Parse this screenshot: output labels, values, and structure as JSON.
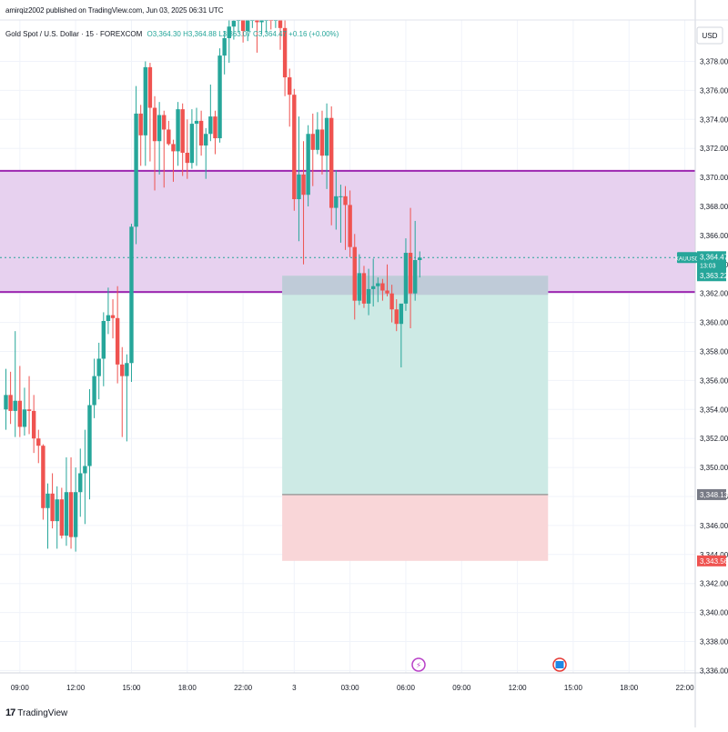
{
  "header": {
    "publisher": "amirqiz2002 published on TradingView.com, Jun 03, 2025 06:31 UTC",
    "symbol": "Gold Spot / U.S. Dollar · 15 · FOREXCOM",
    "ohlc": "O3,364.30 H3,364.88 L3,363.07 C3,364.47 +0.16 (+0.00%)"
  },
  "footer": {
    "brand": "TradingView"
  },
  "colors": {
    "up": "#26a69a",
    "down": "#ef5350",
    "zone_fill": "#e7d1ef",
    "zone_line": "#9c27b0",
    "target_fill": "#cdeae5",
    "stop_fill": "#f9d6d8",
    "entry_fill": "#bcc6d6"
  },
  "chart_data": {
    "type": "candlestick",
    "currency": "USD",
    "y_axis": {
      "ylim": [
        3335.5,
        3381.5
      ],
      "ticks": [
        "3,336.00",
        "3,338.00",
        "3,340.00",
        "3,342.00",
        "3,344.00",
        "3,346.00",
        "3,348.00",
        "3,350.00",
        "3,352.00",
        "3,354.00",
        "3,356.00",
        "3,358.00",
        "3,360.00",
        "3,362.00",
        "3,364.00",
        "3,366.00",
        "3,368.00",
        "3,370.00",
        "3,372.00",
        "3,374.00",
        "3,376.00",
        "3,378.00"
      ],
      "tick_values": [
        3336,
        3338,
        3340,
        3342,
        3344,
        3346,
        3348,
        3350,
        3352,
        3354,
        3356,
        3358,
        3360,
        3362,
        3364,
        3366,
        3368,
        3370,
        3372,
        3374,
        3376,
        3378
      ]
    },
    "x_axis": {
      "labels": [
        "09:00",
        "12:00",
        "15:00",
        "18:00",
        "22:00",
        "3",
        "03:00",
        "06:00",
        "09:00",
        "12:00",
        "15:00",
        "18:00",
        "22:00"
      ],
      "bar_index": [
        3,
        15,
        27,
        39,
        51,
        62,
        74,
        86,
        98,
        110,
        122,
        134,
        146
      ]
    },
    "price_labels": [
      {
        "text": "XAUUSD",
        "value": 3364.47,
        "kind": "symbol"
      },
      {
        "text": "3,364.47",
        "value": 3364.47,
        "kind": "last"
      },
      {
        "text": "13:03",
        "value": 3364.47,
        "kind": "countdown"
      },
      {
        "text": "3,363.22",
        "value": 3363.22,
        "kind": "entry"
      },
      {
        "text": "3,348.13",
        "value": 3348.13,
        "kind": "target"
      },
      {
        "text": "3,343.56",
        "value": 3343.56,
        "kind": "stop"
      }
    ],
    "zones": [
      {
        "name": "supply zone",
        "top": 3370.45,
        "bottom": 3362.1
      }
    ],
    "position": {
      "type": "short",
      "entry": 3363.22,
      "target": 3348.13,
      "stop_top": 3348.13,
      "stop_bottom": 3343.56,
      "start_bar": 60,
      "end_bar": 116
    },
    "last_price": 3364.47,
    "candles": [
      {
        "o": 3354.0,
        "h": 3356.8,
        "l": 3352.6,
        "c": 3355.0
      },
      {
        "o": 3355.0,
        "h": 3356.6,
        "l": 3353.0,
        "c": 3353.9
      },
      {
        "o": 3353.9,
        "h": 3359.4,
        "l": 3352.1,
        "c": 3354.6
      },
      {
        "o": 3354.6,
        "h": 3357.0,
        "l": 3352.1,
        "c": 3352.8
      },
      {
        "o": 3352.8,
        "h": 3355.5,
        "l": 3352.2,
        "c": 3354.0
      },
      {
        "o": 3354.0,
        "h": 3356.3,
        "l": 3352.3,
        "c": 3353.9
      },
      {
        "o": 3353.9,
        "h": 3355.0,
        "l": 3351.0,
        "c": 3352.0
      },
      {
        "o": 3352.0,
        "h": 3352.6,
        "l": 3350.3,
        "c": 3351.5
      },
      {
        "o": 3351.5,
        "h": 3351.6,
        "l": 3346.4,
        "c": 3347.2
      },
      {
        "o": 3347.2,
        "h": 3348.9,
        "l": 3344.4,
        "c": 3348.2
      },
      {
        "o": 3348.2,
        "h": 3349.6,
        "l": 3345.8,
        "c": 3346.3
      },
      {
        "o": 3346.3,
        "h": 3348.7,
        "l": 3344.4,
        "c": 3347.8
      },
      {
        "o": 3347.8,
        "h": 3348.6,
        "l": 3345.1,
        "c": 3345.3
      },
      {
        "o": 3345.3,
        "h": 3350.7,
        "l": 3344.6,
        "c": 3348.3
      },
      {
        "o": 3348.3,
        "h": 3350.7,
        "l": 3344.4,
        "c": 3345.2
      },
      {
        "o": 3345.2,
        "h": 3350.0,
        "l": 3344.2,
        "c": 3348.3
      },
      {
        "o": 3348.3,
        "h": 3351.3,
        "l": 3346.6,
        "c": 3349.6
      },
      {
        "o": 3349.6,
        "h": 3352.6,
        "l": 3346.1,
        "c": 3350.1
      },
      {
        "o": 3350.1,
        "h": 3355.4,
        "l": 3347.8,
        "c": 3354.3
      },
      {
        "o": 3354.3,
        "h": 3357.5,
        "l": 3353.4,
        "c": 3356.3
      },
      {
        "o": 3356.3,
        "h": 3358.6,
        "l": 3354.7,
        "c": 3357.5
      },
      {
        "o": 3357.5,
        "h": 3360.7,
        "l": 3355.6,
        "c": 3360.1
      },
      {
        "o": 3360.1,
        "h": 3362.4,
        "l": 3359.2,
        "c": 3360.5
      },
      {
        "o": 3360.5,
        "h": 3361.6,
        "l": 3358.9,
        "c": 3360.3
      },
      {
        "o": 3360.3,
        "h": 3362.5,
        "l": 3355.8,
        "c": 3357.1
      },
      {
        "o": 3357.1,
        "h": 3358.3,
        "l": 3352.1,
        "c": 3356.3
      },
      {
        "o": 3356.3,
        "h": 3357.8,
        "l": 3351.8,
        "c": 3357.2
      },
      {
        "o": 3357.2,
        "h": 3366.8,
        "l": 3355.9,
        "c": 3366.6
      },
      {
        "o": 3366.6,
        "h": 3376.3,
        "l": 3365.4,
        "c": 3374.4
      },
      {
        "o": 3374.4,
        "h": 3375.0,
        "l": 3370.8,
        "c": 3372.9
      },
      {
        "o": 3372.9,
        "h": 3378.0,
        "l": 3370.8,
        "c": 3377.6
      },
      {
        "o": 3377.6,
        "h": 3377.9,
        "l": 3371.1,
        "c": 3374.8
      },
      {
        "o": 3374.8,
        "h": 3375.6,
        "l": 3369.1,
        "c": 3372.5
      },
      {
        "o": 3372.5,
        "h": 3375.2,
        "l": 3370.2,
        "c": 3374.3
      },
      {
        "o": 3374.3,
        "h": 3374.6,
        "l": 3369.3,
        "c": 3373.3
      },
      {
        "o": 3373.3,
        "h": 3373.9,
        "l": 3372.2,
        "c": 3372.3
      },
      {
        "o": 3372.3,
        "h": 3372.6,
        "l": 3369.7,
        "c": 3371.8
      },
      {
        "o": 3371.8,
        "h": 3375.2,
        "l": 3370.8,
        "c": 3374.7
      },
      {
        "o": 3374.7,
        "h": 3375.1,
        "l": 3370.1,
        "c": 3371.7
      },
      {
        "o": 3371.7,
        "h": 3374.0,
        "l": 3369.9,
        "c": 3371.0
      },
      {
        "o": 3371.0,
        "h": 3374.7,
        "l": 3370.6,
        "c": 3373.7
      },
      {
        "o": 3373.7,
        "h": 3374.8,
        "l": 3370.8,
        "c": 3373.9
      },
      {
        "o": 3373.9,
        "h": 3374.6,
        "l": 3371.5,
        "c": 3372.2
      },
      {
        "o": 3372.2,
        "h": 3373.4,
        "l": 3369.9,
        "c": 3373.0
      },
      {
        "o": 3373.0,
        "h": 3376.4,
        "l": 3372.5,
        "c": 3374.2
      },
      {
        "o": 3374.2,
        "h": 3374.6,
        "l": 3371.6,
        "c": 3372.7
      },
      {
        "o": 3372.7,
        "h": 3378.9,
        "l": 3372.4,
        "c": 3378.4
      },
      {
        "o": 3378.4,
        "h": 3380.1,
        "l": 3377.1,
        "c": 3379.6
      },
      {
        "o": 3379.6,
        "h": 3381.5,
        "l": 3377.9,
        "c": 3380.4
      },
      {
        "o": 3380.4,
        "h": 3381.5,
        "l": 3379.5,
        "c": 3380.8
      },
      {
        "o": 3380.8,
        "h": 3381.5,
        "l": 3380.0,
        "c": 3381.3
      },
      {
        "o": 3381.3,
        "h": 3381.5,
        "l": 3379.3,
        "c": 3380.1
      },
      {
        "o": 3380.1,
        "h": 3381.5,
        "l": 3379.4,
        "c": 3381.0
      },
      {
        "o": 3381.0,
        "h": 3381.5,
        "l": 3380.3,
        "c": 3381.4
      },
      {
        "o": 3381.4,
        "h": 3381.5,
        "l": 3378.6,
        "c": 3380.7
      },
      {
        "o": 3380.7,
        "h": 3381.5,
        "l": 3379.9,
        "c": 3381.3
      },
      {
        "o": 3381.3,
        "h": 3381.5,
        "l": 3380.0,
        "c": 3381.5
      },
      {
        "o": 3381.5,
        "h": 3381.5,
        "l": 3380.2,
        "c": 3380.9
      },
      {
        "o": 3380.9,
        "h": 3381.5,
        "l": 3380.3,
        "c": 3381.4
      },
      {
        "o": 3381.4,
        "h": 3381.5,
        "l": 3378.8,
        "c": 3380.3
      },
      {
        "o": 3380.3,
        "h": 3381.5,
        "l": 3375.6,
        "c": 3376.9
      },
      {
        "o": 3376.9,
        "h": 3377.5,
        "l": 3373.5,
        "c": 3375.7
      },
      {
        "o": 3375.7,
        "h": 3376.1,
        "l": 3367.7,
        "c": 3368.5
      },
      {
        "o": 3368.5,
        "h": 3374.2,
        "l": 3365.6,
        "c": 3370.2
      },
      {
        "o": 3370.2,
        "h": 3372.5,
        "l": 3364.0,
        "c": 3368.8
      },
      {
        "o": 3368.8,
        "h": 3373.6,
        "l": 3368.0,
        "c": 3373.0
      },
      {
        "o": 3373.0,
        "h": 3374.4,
        "l": 3369.4,
        "c": 3371.9
      },
      {
        "o": 3371.9,
        "h": 3374.5,
        "l": 3371.6,
        "c": 3373.3
      },
      {
        "o": 3373.3,
        "h": 3374.6,
        "l": 3370.2,
        "c": 3371.5
      },
      {
        "o": 3371.5,
        "h": 3375.1,
        "l": 3369.2,
        "c": 3374.1
      },
      {
        "o": 3374.1,
        "h": 3374.9,
        "l": 3366.7,
        "c": 3367.9
      },
      {
        "o": 3367.9,
        "h": 3370.5,
        "l": 3366.4,
        "c": 3368.7
      },
      {
        "o": 3368.7,
        "h": 3369.5,
        "l": 3365.5,
        "c": 3368.7
      },
      {
        "o": 3368.7,
        "h": 3369.4,
        "l": 3365.0,
        "c": 3368.1
      },
      {
        "o": 3368.1,
        "h": 3369.1,
        "l": 3364.5,
        "c": 3365.2
      },
      {
        "o": 3365.2,
        "h": 3366.1,
        "l": 3360.2,
        "c": 3361.5
      },
      {
        "o": 3361.5,
        "h": 3364.7,
        "l": 3361.2,
        "c": 3363.4
      },
      {
        "o": 3363.4,
        "h": 3363.9,
        "l": 3361.0,
        "c": 3361.3
      },
      {
        "o": 3361.3,
        "h": 3363.7,
        "l": 3360.5,
        "c": 3362.3
      },
      {
        "o": 3362.3,
        "h": 3364.4,
        "l": 3361.1,
        "c": 3362.5
      },
      {
        "o": 3362.5,
        "h": 3363.1,
        "l": 3361.4,
        "c": 3362.7
      },
      {
        "o": 3362.7,
        "h": 3363.0,
        "l": 3361.5,
        "c": 3362.2
      },
      {
        "o": 3362.2,
        "h": 3364.0,
        "l": 3361.8,
        "c": 3362.0
      },
      {
        "o": 3362.0,
        "h": 3362.6,
        "l": 3360.0,
        "c": 3360.9
      },
      {
        "o": 3360.9,
        "h": 3361.6,
        "l": 3359.4,
        "c": 3359.9
      },
      {
        "o": 3359.9,
        "h": 3361.2,
        "l": 3356.9,
        "c": 3361.3
      },
      {
        "o": 3361.3,
        "h": 3365.8,
        "l": 3360.8,
        "c": 3364.8
      },
      {
        "o": 3364.8,
        "h": 3367.9,
        "l": 3359.6,
        "c": 3362.0
      },
      {
        "o": 3362.0,
        "h": 3367.0,
        "l": 3361.5,
        "c": 3364.3
      },
      {
        "o": 3364.3,
        "h": 3364.9,
        "l": 3363.1,
        "c": 3364.47
      }
    ]
  }
}
